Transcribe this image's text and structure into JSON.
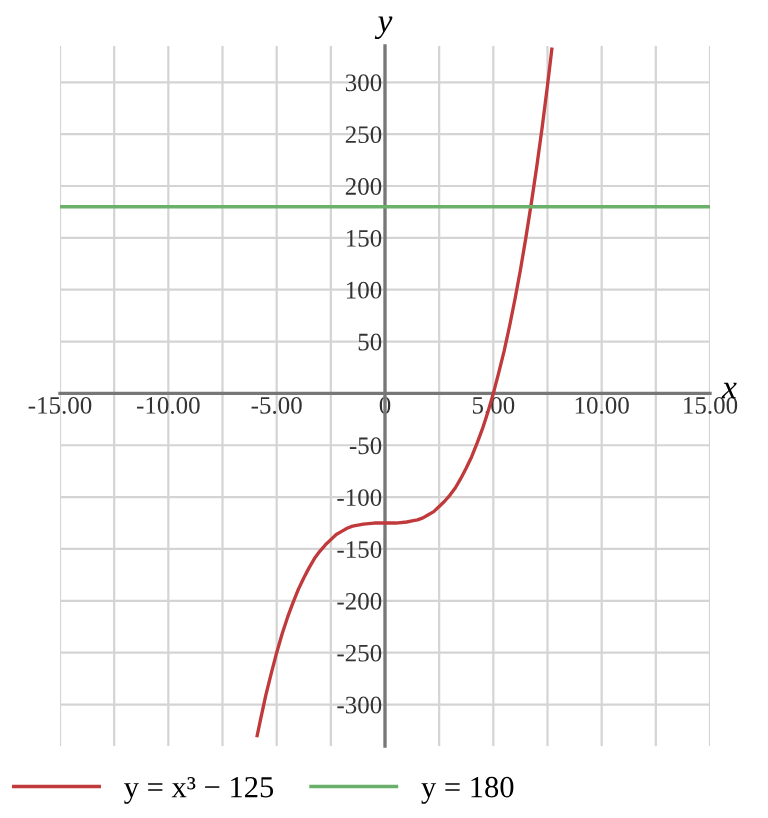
{
  "chart_data": {
    "type": "line",
    "xlabel": "x",
    "ylabel": "y",
    "series": [
      {
        "name": "y = x³ − 125",
        "color": "#c0393b",
        "x": [
          -5.9,
          -5.75,
          -5.5,
          -5.25,
          -5,
          -4.75,
          -4.5,
          -4.25,
          -4,
          -3.75,
          -3.5,
          -3.25,
          -3,
          -2.75,
          -2.5,
          -2.25,
          -2,
          -1.75,
          -1.5,
          -1.25,
          -1,
          -0.5,
          0,
          0.5,
          1,
          1.25,
          1.5,
          1.75,
          2,
          2.25,
          2.5,
          2.75,
          3,
          3.25,
          3.5,
          3.75,
          4,
          4.25,
          4.5,
          4.75,
          5,
          5.25,
          5.5,
          5.75,
          6,
          6.25,
          6.5,
          6.75,
          7,
          7.25,
          7.5,
          7.7
        ],
        "values": [
          -330,
          -315,
          -291,
          -270,
          -250,
          -232,
          -216,
          -202,
          -189,
          -178,
          -168,
          -159,
          -152,
          -146,
          -141,
          -136,
          -133,
          -130,
          -128,
          -127,
          -126,
          -125,
          -125,
          -125,
          -124,
          -123,
          -122,
          -120,
          -117,
          -114,
          -109,
          -104,
          -98,
          -91,
          -82,
          -72,
          -61,
          -48,
          -34,
          -18,
          0,
          20,
          41,
          65,
          91,
          119,
          150,
          183,
          218,
          256,
          297,
          332
        ]
      },
      {
        "name": "y = 180",
        "color": "#6aaf6a",
        "x": [
          -15,
          15
        ],
        "values": [
          180,
          180
        ]
      }
    ],
    "xlim": [
      -15,
      15
    ],
    "ylim": [
      -340,
      335
    ],
    "xticks": [
      {
        "value": -15,
        "label": "-15.00"
      },
      {
        "value": -12.5,
        "label": null
      },
      {
        "value": -10,
        "label": "-10.00"
      },
      {
        "value": -7.5,
        "label": null
      },
      {
        "value": -5,
        "label": "-5.00"
      },
      {
        "value": -2.5,
        "label": null
      },
      0,
      {
        "value": 2.5,
        "label": null
      },
      {
        "value": 5,
        "label": "5.00"
      },
      {
        "value": 7.5,
        "label": null
      },
      {
        "value": 10,
        "label": "10.00"
      },
      {
        "value": 12.5,
        "label": null
      },
      {
        "value": 15,
        "label": "15.00"
      }
    ],
    "yticks": [
      -300,
      -250,
      -200,
      -150,
      -100,
      -50,
      {
        "value": 0,
        "label": null
      },
      50,
      100,
      150,
      200,
      250,
      300
    ],
    "grid": true,
    "legend": "bottom",
    "marker": "none",
    "line_style": "solid"
  }
}
